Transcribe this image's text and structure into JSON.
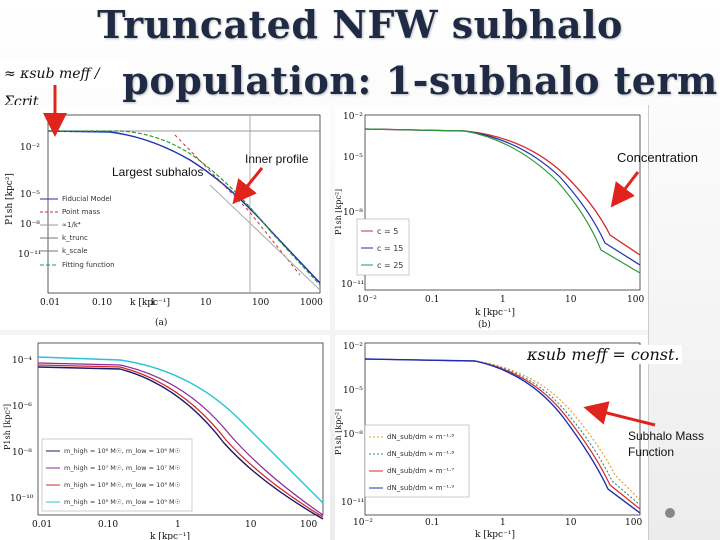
{
  "slide": {
    "title_line1": "Truncated NFW subhalo",
    "title_line2": "population: 1-subhalo term",
    "formula_left": "≈ κsub meff / Σcrit",
    "formula_right": "κsub meff = const."
  },
  "annotations": {
    "largest_subhalos": "Largest subhalos",
    "inner_profile": "Inner profile",
    "concentration": "Concentration",
    "mass_function_line1": "Subhalo Mass",
    "mass_function_line2": "Function"
  },
  "panels": {
    "a": {
      "label": "(a)",
      "xlabel": "k [kpc⁻¹]",
      "ylabel": "P1sh [kpc²]",
      "xticks": [
        "0.01",
        "0.10",
        "1",
        "10",
        "100",
        "1000"
      ],
      "yticks": [
        "10⁻²",
        "10⁻⁵",
        "10⁻⁸",
        "10⁻¹¹"
      ],
      "legend": [
        "Fiducial Model",
        "Point mass",
        "∝1/k⁴",
        "k_trunc",
        "k_scale",
        "Fitting function"
      ]
    },
    "b": {
      "label": "(b)",
      "xlabel": "k [kpc⁻¹]",
      "ylabel": "P1sh [kpc²]",
      "xticks": [
        "10⁻²",
        "0.1",
        "1",
        "10",
        "100"
      ],
      "yticks": [
        "10⁻²",
        "10⁻⁵",
        "10⁻⁸",
        "10⁻¹¹"
      ],
      "legend": [
        "c = 5",
        "c = 15",
        "c = 25"
      ]
    },
    "c": {
      "xlabel": "k [kpc⁻¹]",
      "ylabel": "P1sh [kpc²]",
      "xticks": [
        "0.01",
        "0.10",
        "1",
        "10",
        "100"
      ],
      "yticks": [
        "10⁻⁴",
        "10⁻⁶",
        "10⁻⁸",
        "10⁻¹⁰"
      ],
      "legend": [
        "m_high = 10⁶ M☉, m_low = 10⁶ M☉",
        "m_high = 10⁷ M☉, m_low = 10⁷ M☉",
        "m_high = 10⁸ M☉, m_low = 10⁸ M☉",
        "m_high = 10⁹ M☉, m_low = 10⁹ M☉"
      ]
    },
    "d": {
      "xlabel": "k [kpc⁻¹]",
      "ylabel": "P1sh [kpc²]",
      "xticks": [
        "10⁻²",
        "0.1",
        "1",
        "10",
        "100"
      ],
      "yticks": [
        "10⁻²",
        "10⁻⁵",
        "10⁻⁸",
        "10⁻¹¹"
      ],
      "legend": [
        "dN_sub/dm ∝ m⁻¹·⁸",
        "dN_sub/dm ∝ m⁻¹·⁸",
        "dN_sub/dm ∝ m⁻¹·⁷",
        "dN_sub/dm ∝ m⁻¹·⁹"
      ]
    }
  },
  "colors": {
    "title": "#1f2a44",
    "arrow": "#e0241b",
    "red": "#d42b2b",
    "green": "#2a9a3a",
    "blue": "#1c2fb3",
    "navy": "#1a1a6e",
    "purple": "#8a2b9a",
    "cyan": "#27c4d8",
    "orange": "#e39a2a",
    "teal": "#2a8a8a"
  }
}
